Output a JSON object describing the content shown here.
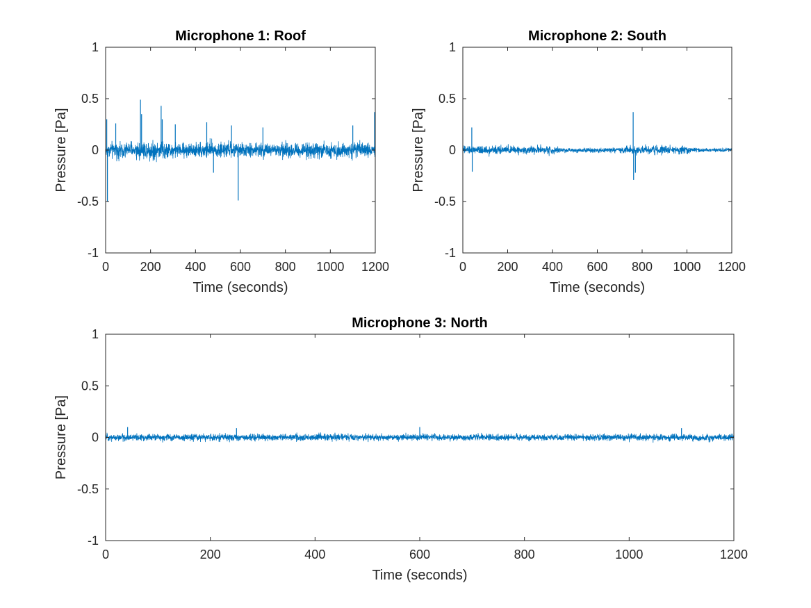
{
  "figure": {
    "background": "#ffffff",
    "line_color": "#0072bd",
    "axis_color": "#262626"
  },
  "chart_data": [
    {
      "type": "line",
      "title": "Microphone 1: Roof",
      "xlabel": "Time (seconds)",
      "ylabel": "Pressure [Pa]",
      "xlim": [
        0,
        1200
      ],
      "ylim": [
        -1,
        1
      ],
      "xticks": [
        0,
        200,
        400,
        600,
        800,
        1000,
        1200
      ],
      "xtick_labels": [
        "0",
        "200",
        "400",
        "600",
        "800",
        "1000",
        "1200"
      ],
      "yticks": [
        -1,
        -0.5,
        0,
        0.5,
        1
      ],
      "ytick_labels": [
        "-1",
        "-0.5",
        "0",
        "0.5",
        "1"
      ],
      "grid": false,
      "series": [
        {
          "color": "#0072bd",
          "envelope": [
            [
              0,
              0.1
            ],
            [
              100,
              0.12
            ],
            [
              200,
              0.14
            ],
            [
              250,
              0.15
            ],
            [
              300,
              0.1
            ],
            [
              400,
              0.11
            ],
            [
              450,
              0.13
            ],
            [
              500,
              0.12
            ],
            [
              600,
              0.1
            ],
            [
              800,
              0.11
            ],
            [
              1000,
              0.11
            ],
            [
              1200,
              0.1
            ]
          ],
          "spikes": [
            [
              5,
              0.3
            ],
            [
              8,
              -0.5
            ],
            [
              45,
              0.26
            ],
            [
              155,
              0.49
            ],
            [
              160,
              0.35
            ],
            [
              247,
              0.43
            ],
            [
              252,
              0.3
            ],
            [
              310,
              0.25
            ],
            [
              450,
              0.27
            ],
            [
              480,
              -0.22
            ],
            [
              560,
              0.24
            ],
            [
              590,
              -0.49
            ],
            [
              700,
              0.22
            ],
            [
              1100,
              0.24
            ],
            [
              1197,
              0.37
            ]
          ]
        }
      ]
    },
    {
      "type": "line",
      "title": "Microphone 2: South",
      "xlabel": "Time (seconds)",
      "ylabel": "Pressure [Pa]",
      "xlim": [
        0,
        1200
      ],
      "ylim": [
        -1,
        1
      ],
      "xticks": [
        0,
        200,
        400,
        600,
        800,
        1000,
        1200
      ],
      "xtick_labels": [
        "0",
        "200",
        "400",
        "600",
        "800",
        "1000",
        "1200"
      ],
      "yticks": [
        -1,
        -0.5,
        0,
        0.5,
        1
      ],
      "ytick_labels": [
        "-1",
        "-0.5",
        "0",
        "0.5",
        "1"
      ],
      "grid": false,
      "series": [
        {
          "color": "#0072bd",
          "envelope": [
            [
              0,
              0.06
            ],
            [
              100,
              0.06
            ],
            [
              200,
              0.06
            ],
            [
              300,
              0.06
            ],
            [
              400,
              0.06
            ],
            [
              450,
              0.035
            ],
            [
              600,
              0.035
            ],
            [
              700,
              0.035
            ],
            [
              720,
              0.06
            ],
            [
              800,
              0.06
            ],
            [
              1000,
              0.06
            ],
            [
              1020,
              0.03
            ],
            [
              1200,
              0.03
            ]
          ],
          "spikes": [
            [
              40,
              0.22
            ],
            [
              42,
              -0.21
            ],
            [
              760,
              0.37
            ],
            [
              762,
              -0.29
            ],
            [
              770,
              -0.22
            ]
          ]
        }
      ]
    },
    {
      "type": "line",
      "title": "Microphone 3: North",
      "xlabel": "Time (seconds)",
      "ylabel": "Pressure [Pa]",
      "xlim": [
        0,
        1200
      ],
      "ylim": [
        -1,
        1
      ],
      "xticks": [
        0,
        200,
        400,
        600,
        800,
        1000,
        1200
      ],
      "xtick_labels": [
        "0",
        "200",
        "400",
        "600",
        "800",
        "1000",
        "1200"
      ],
      "yticks": [
        -1,
        -0.5,
        0,
        0.5,
        1
      ],
      "ytick_labels": [
        "-1",
        "-0.5",
        "0",
        "0.5",
        "1"
      ],
      "grid": false,
      "series": [
        {
          "color": "#0072bd",
          "envelope": [
            [
              0,
              0.05
            ],
            [
              300,
              0.05
            ],
            [
              600,
              0.05
            ],
            [
              900,
              0.05
            ],
            [
              1200,
              0.05
            ]
          ],
          "spikes": [
            [
              42,
              0.1
            ],
            [
              600,
              0.1
            ],
            [
              250,
              0.09
            ],
            [
              1100,
              0.09
            ]
          ]
        }
      ]
    }
  ]
}
